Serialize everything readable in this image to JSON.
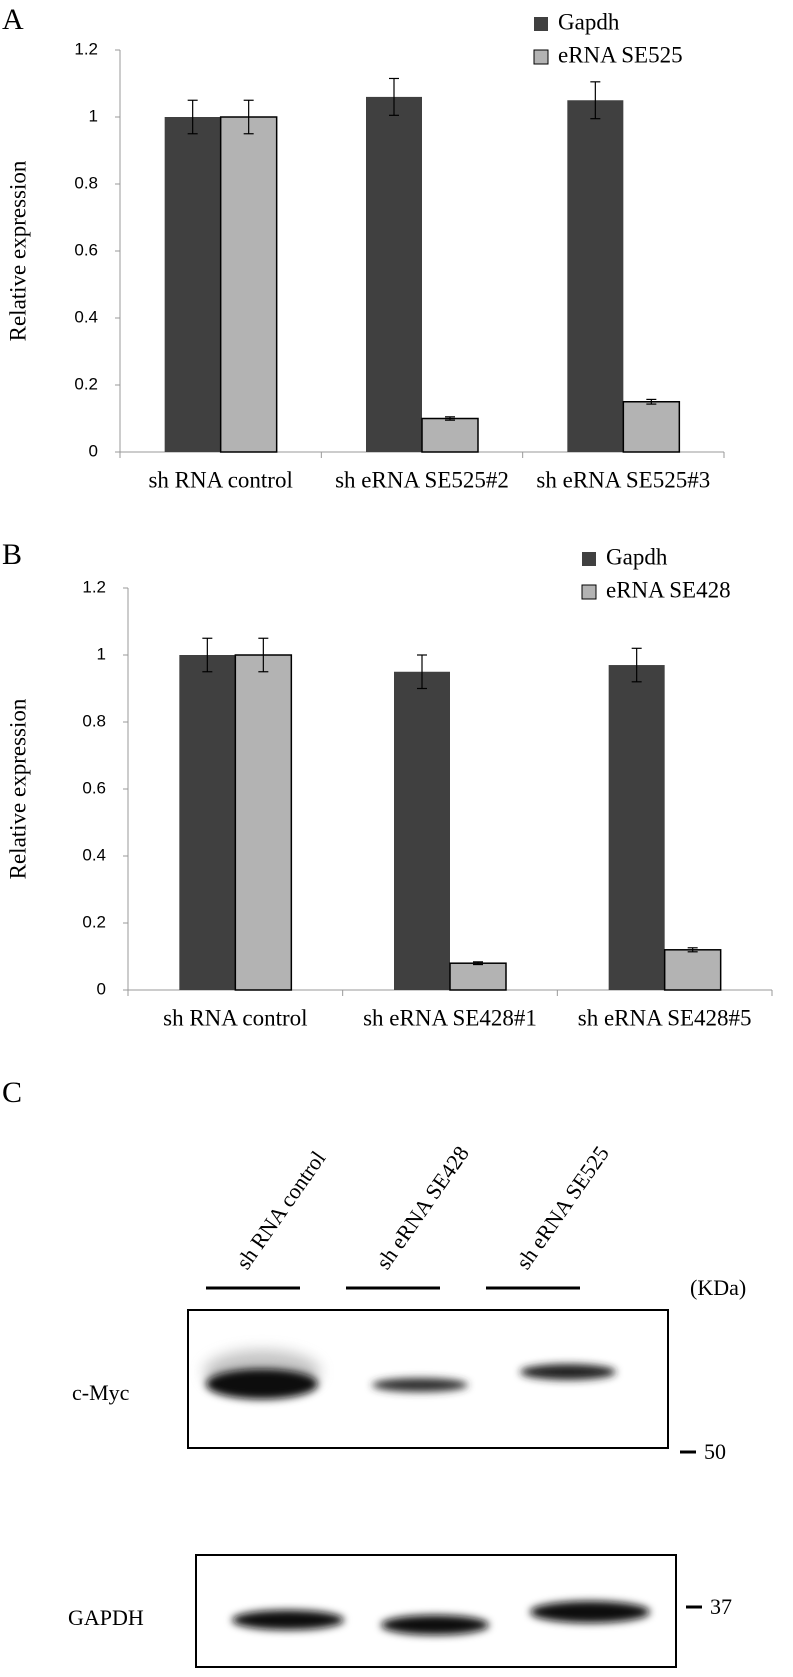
{
  "chart_data": [
    {
      "type": "bar",
      "panel": "A",
      "ylabel": "Relative expression",
      "categories": [
        "sh RNA control",
        "sh eRNA SE525#2",
        "sh eRNA SE525#3"
      ],
      "series": [
        {
          "name": "Gapdh",
          "color": "#404040",
          "values": [
            1,
            1.06,
            1.05
          ],
          "errors": [
            0.05,
            0.055,
            0.055
          ]
        },
        {
          "name": "eRNA SE525",
          "color": "#b3b3b3",
          "values": [
            1,
            0.1,
            0.15
          ],
          "errors": [
            0.05,
            0.005,
            0.007
          ]
        }
      ],
      "ylim": [
        0,
        1.2
      ],
      "yticks": [
        0,
        0.2,
        0.4,
        0.6,
        0.8,
        1,
        1.2
      ],
      "legend": "top-right"
    },
    {
      "type": "bar",
      "panel": "B",
      "ylabel": "Relative expression",
      "categories": [
        "sh RNA control",
        "sh eRNA SE428#1",
        "sh eRNA SE428#5"
      ],
      "series": [
        {
          "name": "Gapdh",
          "color": "#404040",
          "values": [
            1,
            0.95,
            0.97
          ],
          "errors": [
            0.05,
            0.05,
            0.05
          ]
        },
        {
          "name": "eRNA SE428",
          "color": "#b3b3b3",
          "values": [
            1,
            0.08,
            0.12
          ],
          "errors": [
            0.05,
            0.004,
            0.006
          ]
        }
      ],
      "ylim": [
        0,
        1.2
      ],
      "yticks": [
        0,
        0.2,
        0.4,
        0.6,
        0.8,
        1,
        1.2
      ],
      "legend": "top-right"
    }
  ],
  "blot": {
    "panel": "C",
    "lanes": [
      "sh RNA control",
      "sh eRNA SE428",
      "sh eRNA SE525"
    ],
    "unit": "(KDa)",
    "rows": [
      {
        "label": "c-Myc",
        "marker": "50"
      },
      {
        "label": "GAPDH",
        "marker": "37"
      }
    ]
  }
}
